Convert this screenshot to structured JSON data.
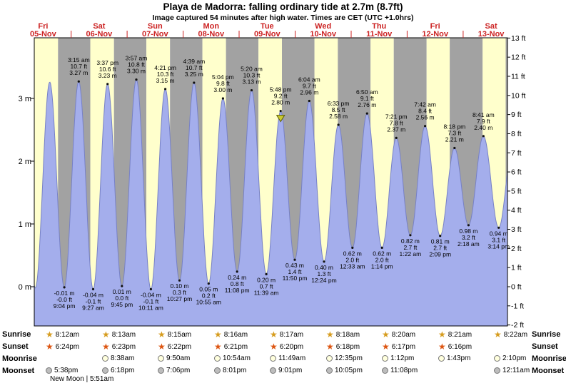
{
  "header": {
    "title": "Playa de Madorra: falling ordinary tide at 2.7m (8.7ft)",
    "subtitle": "Image captured 54 minutes after high water. Times are CET (UTC +1.0hrs)"
  },
  "colors": {
    "day_band": "#ffffcc",
    "night_band": "#a2a2a2",
    "tide_fill": "#a4aeec",
    "tide_stroke": "#7781c6",
    "date_red": "#cc2222",
    "marker_fill": "#c9c932",
    "marker_stroke": "#5c5c00",
    "sunrise_star": "#d69c1e",
    "sunset_star": "#dd5511",
    "moonrise_fill": "#ffffdd",
    "moonset_fill": "#bdbdbd",
    "text": "#000000"
  },
  "chart_data": {
    "type": "area",
    "title": "Playa de Madorra: falling ordinary tide at 2.7m (8.7ft)",
    "time_unit": "days since 05-Nov 00:00",
    "time_range_days": [
      0.3417,
      8.7917
    ],
    "ylim_m": [
      -0.65,
      3.97
    ],
    "ylim_ft": [
      -2,
      13
    ],
    "days": [
      {
        "dow": "Fri",
        "date": "05-Nov"
      },
      {
        "dow": "Sat",
        "date": "06-Nov"
      },
      {
        "dow": "Sun",
        "date": "07-Nov"
      },
      {
        "dow": "Mon",
        "date": "08-Nov"
      },
      {
        "dow": "Tue",
        "date": "09-Nov"
      },
      {
        "dow": "Wed",
        "date": "10-Nov"
      },
      {
        "dow": "Thu",
        "date": "11-Nov"
      },
      {
        "dow": "Fri",
        "date": "12-Nov"
      },
      {
        "dow": "Sat",
        "date": "13-Nov"
      }
    ],
    "y_axis_left": [
      {
        "label": "3 m",
        "value": 3
      },
      {
        "label": "2 m",
        "value": 2
      },
      {
        "label": "1 m",
        "value": 1
      },
      {
        "label": "0 m",
        "value": 0
      }
    ],
    "y_axis_right": [
      {
        "label": "13 ft",
        "value": 13
      },
      {
        "label": "12 ft",
        "value": 12
      },
      {
        "label": "11 ft",
        "value": 11
      },
      {
        "label": "10 ft",
        "value": 10
      },
      {
        "label": "9 ft",
        "value": 9
      },
      {
        "label": "8 ft",
        "value": 8
      },
      {
        "label": "7 ft",
        "value": 7
      },
      {
        "label": "6 ft",
        "value": 6
      },
      {
        "label": "5 ft",
        "value": 5
      },
      {
        "label": "4 ft",
        "value": 4
      },
      {
        "label": "3 ft",
        "value": 3
      },
      {
        "label": "2 ft",
        "value": 2
      },
      {
        "label": "1 ft",
        "value": 1
      },
      {
        "label": "0 ft",
        "value": 0
      },
      {
        "label": "-1 ft",
        "value": -1
      },
      {
        "label": "-2 ft",
        "value": -2
      }
    ],
    "daylight": {
      "sunrise_h": [
        8.2,
        8.217,
        8.25,
        8.267,
        8.283,
        8.3,
        8.333,
        8.35,
        8.367
      ],
      "sunset_h": [
        18.4,
        18.383,
        18.367,
        18.35,
        18.333,
        18.3,
        18.283,
        18.267,
        18.25
      ]
    },
    "current_marker_index": 18,
    "events": [
      {
        "t": 0.1042,
        "h": 3.28,
        "type": "high"
      },
      {
        "t": 0.3611,
        "h": -0.02,
        "type": "low"
      },
      {
        "t": 0.6181,
        "h": 3.26,
        "type": "high"
      },
      {
        "t": 0.8778,
        "h": -0.01,
        "type": "low",
        "lines": [
          "-0.01 m",
          "-0.0 ft",
          "9:04 pm"
        ]
      },
      {
        "t": 1.1354,
        "h": 3.27,
        "type": "high",
        "lines": [
          "3:15 am",
          "10.7 ft",
          "3.27 m"
        ]
      },
      {
        "t": 1.3938,
        "h": -0.04,
        "type": "low",
        "lines": [
          "-0.04 m",
          "-0.1 ft",
          "9:27 am"
        ]
      },
      {
        "t": 1.6507,
        "h": 3.23,
        "type": "high",
        "lines": [
          "3:37 pm",
          "10.6 ft",
          "3.23 m"
        ]
      },
      {
        "t": 1.9063,
        "h": 0.01,
        "type": "low",
        "lines": [
          "0.01 m",
          "0.0 ft",
          "9:45 pm"
        ]
      },
      {
        "t": 2.1646,
        "h": 3.3,
        "type": "high",
        "lines": [
          "3:57 am",
          "10.8 ft",
          "3.30 m"
        ]
      },
      {
        "t": 2.4243,
        "h": -0.04,
        "type": "low",
        "lines": [
          "-0.04 m",
          "-0.1 ft",
          "10:11 am"
        ]
      },
      {
        "t": 2.6813,
        "h": 3.15,
        "type": "high",
        "lines": [
          "4:21 pm",
          "10.3 ft",
          "3.15 m"
        ]
      },
      {
        "t": 2.9354,
        "h": 0.1,
        "type": "low",
        "lines": [
          "0.10 m",
          "0.3 ft",
          "10:27 pm"
        ]
      },
      {
        "t": 3.1938,
        "h": 3.25,
        "type": "high",
        "lines": [
          "4:39 am",
          "10.7 ft",
          "3.25 m"
        ]
      },
      {
        "t": 3.4549,
        "h": 0.05,
        "type": "low",
        "lines": [
          "0.05 m",
          "0.2 ft",
          "10:55 am"
        ]
      },
      {
        "t": 3.7111,
        "h": 3.0,
        "type": "high",
        "lines": [
          "5:04 pm",
          "9.8 ft",
          "3.00 m"
        ]
      },
      {
        "t": 3.9639,
        "h": 0.24,
        "type": "low",
        "lines": [
          "0.24 m",
          "0.8 ft",
          "11:08 pm"
        ]
      },
      {
        "t": 4.2222,
        "h": 3.13,
        "type": "high",
        "lines": [
          "5:20 am",
          "10.3 ft",
          "3.13 m"
        ]
      },
      {
        "t": 4.4854,
        "h": 0.2,
        "type": "low",
        "lines": [
          "0.20 m",
          "0.7 ft",
          "11:39 am"
        ]
      },
      {
        "t": 4.7417,
        "h": 2.8,
        "type": "high",
        "lines": [
          "5:48 pm",
          "9.2 ft",
          "2.80 m"
        ]
      },
      {
        "t": 4.9931,
        "h": 0.43,
        "type": "low",
        "lines": [
          "0.43 m",
          "1.4 ft",
          "11:50 pm"
        ]
      },
      {
        "t": 5.2528,
        "h": 2.96,
        "type": "high",
        "lines": [
          "6:04 am",
          "9.7 ft",
          "2.96 m"
        ]
      },
      {
        "t": 5.5167,
        "h": 0.4,
        "type": "low",
        "lines": [
          "0.40 m",
          "1.3 ft",
          "12:24 pm"
        ]
      },
      {
        "t": 5.7729,
        "h": 2.58,
        "type": "high",
        "lines": [
          "6:33 pm",
          "8.5 ft",
          "2.58 m"
        ]
      },
      {
        "t": 6.0229,
        "h": 0.62,
        "type": "low",
        "lines": [
          "0.62 m",
          "2.0 ft",
          "12:33 am"
        ]
      },
      {
        "t": 6.2847,
        "h": 2.76,
        "type": "high",
        "lines": [
          "6:50 am",
          "9.1 ft",
          "2.76 m"
        ]
      },
      {
        "t": 6.5514,
        "h": 0.62,
        "type": "low",
        "lines": [
          "0.62 m",
          "2.0 ft",
          "1:14 pm"
        ]
      },
      {
        "t": 6.8063,
        "h": 2.37,
        "type": "high",
        "lines": [
          "7:21 pm",
          "7.8 ft",
          "2.37 m"
        ]
      },
      {
        "t": 7.0569,
        "h": 0.82,
        "type": "low",
        "lines": [
          "0.82 m",
          "2.7 ft",
          "1:22 am"
        ]
      },
      {
        "t": 7.3208,
        "h": 2.56,
        "type": "high",
        "lines": [
          "7:42 am",
          "8.4 ft",
          "2.56 m"
        ]
      },
      {
        "t": 7.5896,
        "h": 0.81,
        "type": "low",
        "lines": [
          "0.81 m",
          "2.7 ft",
          "2:09 pm"
        ]
      },
      {
        "t": 7.8458,
        "h": 2.21,
        "type": "high",
        "lines": [
          "8:18 pm",
          "7.3 ft",
          "2.21 m"
        ]
      },
      {
        "t": 8.0958,
        "h": 0.98,
        "type": "low",
        "lines": [
          "0.98 m",
          "3.2 ft",
          "2:18 am"
        ]
      },
      {
        "t": 8.3618,
        "h": 2.4,
        "type": "high",
        "lines": [
          "8:41 am",
          "7.9 ft",
          "2.40 m"
        ]
      },
      {
        "t": 8.6347,
        "h": 0.94,
        "type": "low",
        "lines": [
          "0.94 m",
          "3.1 ft",
          "3:14 pm"
        ]
      },
      {
        "t": 8.8889,
        "h": 2.25,
        "type": "high"
      }
    ]
  },
  "astro": {
    "rows": [
      {
        "name": "Sunrise",
        "icon": "sunrise-star-icon",
        "items": [
          {
            "day": 0,
            "time": "8:12am"
          },
          {
            "day": 1,
            "time": "8:13am"
          },
          {
            "day": 2,
            "time": "8:15am"
          },
          {
            "day": 3,
            "time": "8:16am"
          },
          {
            "day": 4,
            "time": "8:17am"
          },
          {
            "day": 5,
            "time": "8:18am"
          },
          {
            "day": 6,
            "time": "8:20am"
          },
          {
            "day": 7,
            "time": "8:21am"
          },
          {
            "day": 8,
            "time": "8:22am"
          }
        ]
      },
      {
        "name": "Sunset",
        "icon": "sunset-star-icon",
        "items": [
          {
            "day": 0,
            "time": "6:24pm"
          },
          {
            "day": 1,
            "time": "6:23pm"
          },
          {
            "day": 2,
            "time": "6:22pm"
          },
          {
            "day": 3,
            "time": "6:21pm"
          },
          {
            "day": 4,
            "time": "6:20pm"
          },
          {
            "day": 5,
            "time": "6:18pm"
          },
          {
            "day": 6,
            "time": "6:17pm"
          },
          {
            "day": 7,
            "time": "6:16pm"
          }
        ]
      },
      {
        "name": "Moonrise",
        "icon": "moonrise-icon",
        "items": [
          {
            "day": 1,
            "time": "8:38am"
          },
          {
            "day": 2,
            "time": "9:50am"
          },
          {
            "day": 3,
            "time": "10:54am"
          },
          {
            "day": 4,
            "time": "11:49am"
          },
          {
            "day": 5,
            "time": "12:35pm"
          },
          {
            "day": 6,
            "time": "1:12pm"
          },
          {
            "day": 7,
            "time": "1:43pm"
          },
          {
            "day": 8,
            "time": "2:10pm"
          }
        ]
      },
      {
        "name": "Moonset",
        "icon": "moonset-icon",
        "items": [
          {
            "day": 0,
            "time": "5:38pm"
          },
          {
            "day": 1,
            "time": "6:18pm"
          },
          {
            "day": 2,
            "time": "7:06pm"
          },
          {
            "day": 3,
            "time": "8:01pm"
          },
          {
            "day": 4,
            "time": "9:01pm"
          },
          {
            "day": 5,
            "time": "10:05pm"
          },
          {
            "day": 6,
            "time": "11:08pm"
          },
          {
            "day": 8,
            "time": "12:11am"
          }
        ]
      }
    ],
    "new_moon_label": "New Moon | 5:51am"
  }
}
